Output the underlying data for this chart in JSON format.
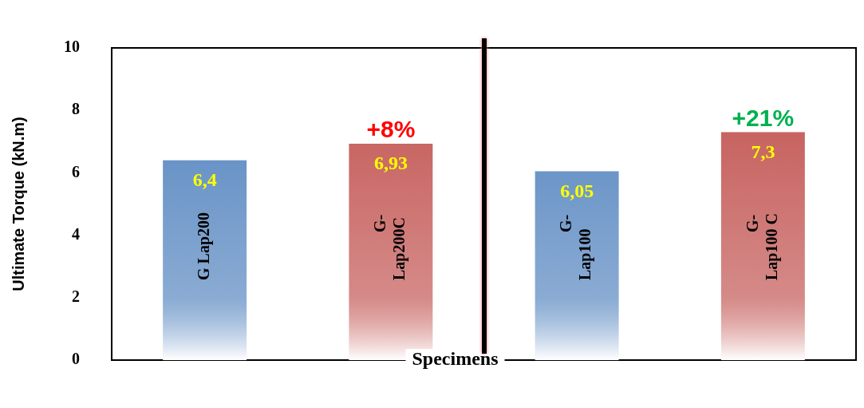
{
  "chart_data": {
    "type": "bar",
    "xlabel": "Specimens",
    "ylabel": "Ultimate Torque (kN.m)",
    "categories": [
      "G Lap200",
      "G-Lap200C",
      "G-Lap100",
      "G-Lap100 C"
    ],
    "values": [
      6.4,
      6.93,
      6.05,
      7.3
    ],
    "colors": [
      "#4f81bd",
      "#c0504d",
      "#4f81bd",
      "#c0504d"
    ],
    "value_labels": [
      "6,4",
      "6,93",
      "6,05",
      "7,3"
    ],
    "annotations": [
      {
        "text": "+8%",
        "x": "G-Lap200C",
        "y": 6.93
      },
      {
        "text": "+21%",
        "x": "G-Lap100 C",
        "y": 7.3
      }
    ],
    "ylim": [
      0,
      10
    ],
    "yticks": [
      0,
      2,
      4,
      6,
      8,
      10
    ],
    "grid": false,
    "legend": false
  }
}
